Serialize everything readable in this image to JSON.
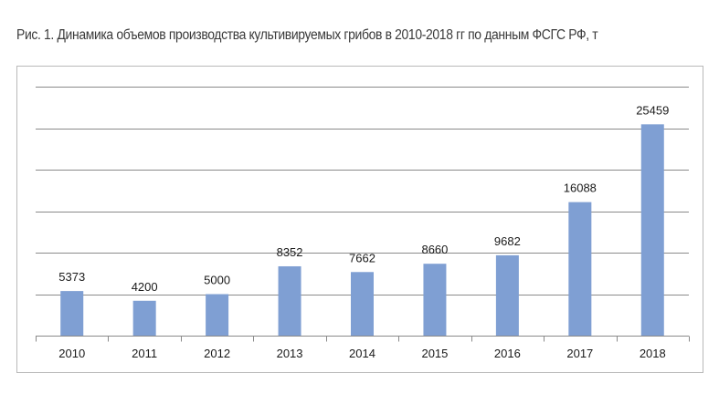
{
  "caption": "Рис. 1. Динамика объемов производства культивируемых грибов в 2010-2018 гг по данным ФСГС РФ, т",
  "chart_data": {
    "type": "bar",
    "categories": [
      "2010",
      "2011",
      "2012",
      "2013",
      "2014",
      "2015",
      "2016",
      "2017",
      "2018"
    ],
    "values": [
      5373,
      4200,
      5000,
      8352,
      7662,
      8660,
      9682,
      16088,
      25459
    ],
    "data_labels": [
      "5373",
      "4200",
      "5000",
      "8352",
      "7662",
      "8660",
      "9682",
      "16088",
      "25459"
    ],
    "title": "Рис. 1. Динамика объемов производства культивируемых грибов в 2010-2018 гг по данным ФСГС РФ, т",
    "xlabel": "",
    "ylabel": "",
    "ylim": [
      0,
      30000
    ],
    "y_gridline_step": 5000,
    "y_tick_labels_shown": false,
    "grid": true,
    "legend": "none",
    "colors": {
      "bar": "#7f9fd3",
      "grid": "#8a8a8a",
      "text": "#1a1a1a"
    }
  }
}
